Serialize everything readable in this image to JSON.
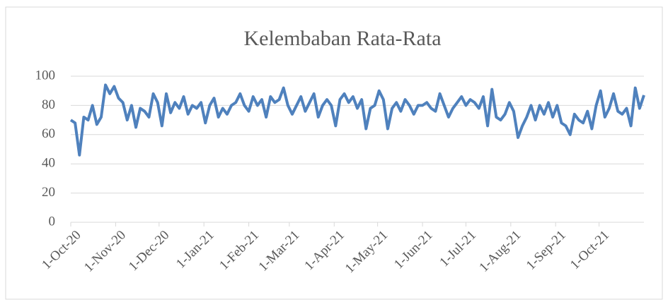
{
  "chart_data": {
    "type": "line",
    "title": "Kelembaban Rata-Rata",
    "x": [
      "2020-10-01",
      "2020-10-04",
      "2020-10-07",
      "2020-10-10",
      "2020-10-13",
      "2020-10-16",
      "2020-10-19",
      "2020-10-22",
      "2020-10-25",
      "2020-10-28",
      "2020-10-31",
      "2020-11-03",
      "2020-11-06",
      "2020-11-09",
      "2020-11-12",
      "2020-11-15",
      "2020-11-18",
      "2020-11-21",
      "2020-11-24",
      "2020-11-27",
      "2020-11-30",
      "2020-12-03",
      "2020-12-06",
      "2020-12-09",
      "2020-12-12",
      "2020-12-15",
      "2020-12-18",
      "2020-12-21",
      "2020-12-24",
      "2020-12-27",
      "2020-12-30",
      "2021-01-02",
      "2021-01-05",
      "2021-01-08",
      "2021-01-11",
      "2021-01-14",
      "2021-01-17",
      "2021-01-20",
      "2021-01-23",
      "2021-01-26",
      "2021-01-29",
      "2021-02-01",
      "2021-02-04",
      "2021-02-07",
      "2021-02-10",
      "2021-02-13",
      "2021-02-16",
      "2021-02-19",
      "2021-02-22",
      "2021-02-25",
      "2021-02-28",
      "2021-03-03",
      "2021-03-06",
      "2021-03-09",
      "2021-03-12",
      "2021-03-15",
      "2021-03-18",
      "2021-03-21",
      "2021-03-24",
      "2021-03-27",
      "2021-03-30",
      "2021-04-02",
      "2021-04-05",
      "2021-04-08",
      "2021-04-11",
      "2021-04-14",
      "2021-04-17",
      "2021-04-20",
      "2021-04-23",
      "2021-04-26",
      "2021-04-29",
      "2021-05-02",
      "2021-05-05",
      "2021-05-08",
      "2021-05-11",
      "2021-05-14",
      "2021-05-17",
      "2021-05-20",
      "2021-05-23",
      "2021-05-26",
      "2021-05-29",
      "2021-06-01",
      "2021-06-04",
      "2021-06-07",
      "2021-06-10",
      "2021-06-13",
      "2021-06-16",
      "2021-06-19",
      "2021-06-22",
      "2021-06-25",
      "2021-06-28",
      "2021-07-01",
      "2021-07-04",
      "2021-07-07",
      "2021-07-10",
      "2021-07-13",
      "2021-07-16",
      "2021-07-19",
      "2021-07-22",
      "2021-07-25",
      "2021-07-28",
      "2021-07-31",
      "2021-08-03",
      "2021-08-06",
      "2021-08-09",
      "2021-08-12",
      "2021-08-15",
      "2021-08-18",
      "2021-08-21",
      "2021-08-24",
      "2021-08-27",
      "2021-08-30",
      "2021-09-02",
      "2021-09-05",
      "2021-09-08",
      "2021-09-11",
      "2021-09-14",
      "2021-09-17",
      "2021-09-20",
      "2021-09-23",
      "2021-09-26",
      "2021-09-29",
      "2021-10-02",
      "2021-10-05",
      "2021-10-08",
      "2021-10-11",
      "2021-10-14",
      "2021-10-17",
      "2021-10-20",
      "2021-10-23",
      "2021-10-26",
      "2021-10-29",
      "2021-11-01"
    ],
    "series": [
      {
        "name": "Kelembaban Rata-Rata",
        "color": "#4f81bd",
        "values": [
          70,
          68,
          46,
          72,
          70,
          80,
          67,
          72,
          94,
          88,
          93,
          85,
          82,
          70,
          80,
          65,
          78,
          76,
          72,
          88,
          82,
          66,
          88,
          75,
          82,
          78,
          86,
          74,
          80,
          78,
          82,
          68,
          80,
          85,
          72,
          78,
          74,
          80,
          82,
          88,
          80,
          76,
          86,
          80,
          84,
          72,
          86,
          82,
          84,
          92,
          80,
          74,
          80,
          86,
          76,
          82,
          88,
          72,
          80,
          84,
          80,
          66,
          84,
          88,
          82,
          86,
          78,
          84,
          64,
          78,
          80,
          90,
          84,
          64,
          78,
          82,
          76,
          84,
          80,
          74,
          80,
          80,
          82,
          78,
          76,
          88,
          80,
          72,
          78,
          82,
          86,
          80,
          84,
          82,
          78,
          86,
          66,
          91,
          72,
          70,
          74,
          82,
          76,
          58,
          66,
          72,
          80,
          70,
          80,
          74,
          82,
          72,
          80,
          68,
          66,
          60,
          74,
          70,
          68,
          76,
          64,
          80,
          90,
          72,
          78,
          88,
          76,
          74,
          78,
          66,
          92,
          78,
          87
        ]
      }
    ],
    "xlim": [
      "2020-10-01",
      "2021-11-01"
    ],
    "xticks": [
      {
        "value": "2020-10-01",
        "label": "1-Oct-20"
      },
      {
        "value": "2020-11-01",
        "label": "1-Nov-20"
      },
      {
        "value": "2020-12-01",
        "label": "1-Dec-20"
      },
      {
        "value": "2021-01-01",
        "label": "1-Jan-21"
      },
      {
        "value": "2021-02-01",
        "label": "1-Feb-21"
      },
      {
        "value": "2021-03-01",
        "label": "1-Mar-21"
      },
      {
        "value": "2021-04-01",
        "label": "1-Apr-21"
      },
      {
        "value": "2021-05-01",
        "label": "1-May-21"
      },
      {
        "value": "2021-06-01",
        "label": "1-Jun-21"
      },
      {
        "value": "2021-07-01",
        "label": "1-Jul-21"
      },
      {
        "value": "2021-08-01",
        "label": "1-Aug-21"
      },
      {
        "value": "2021-09-01",
        "label": "1-Sep-21"
      },
      {
        "value": "2021-10-01",
        "label": "1-Oct-21"
      }
    ],
    "ylim": [
      0,
      100
    ],
    "yticks": [
      0,
      20,
      40,
      60,
      80,
      100
    ],
    "grid": true
  }
}
